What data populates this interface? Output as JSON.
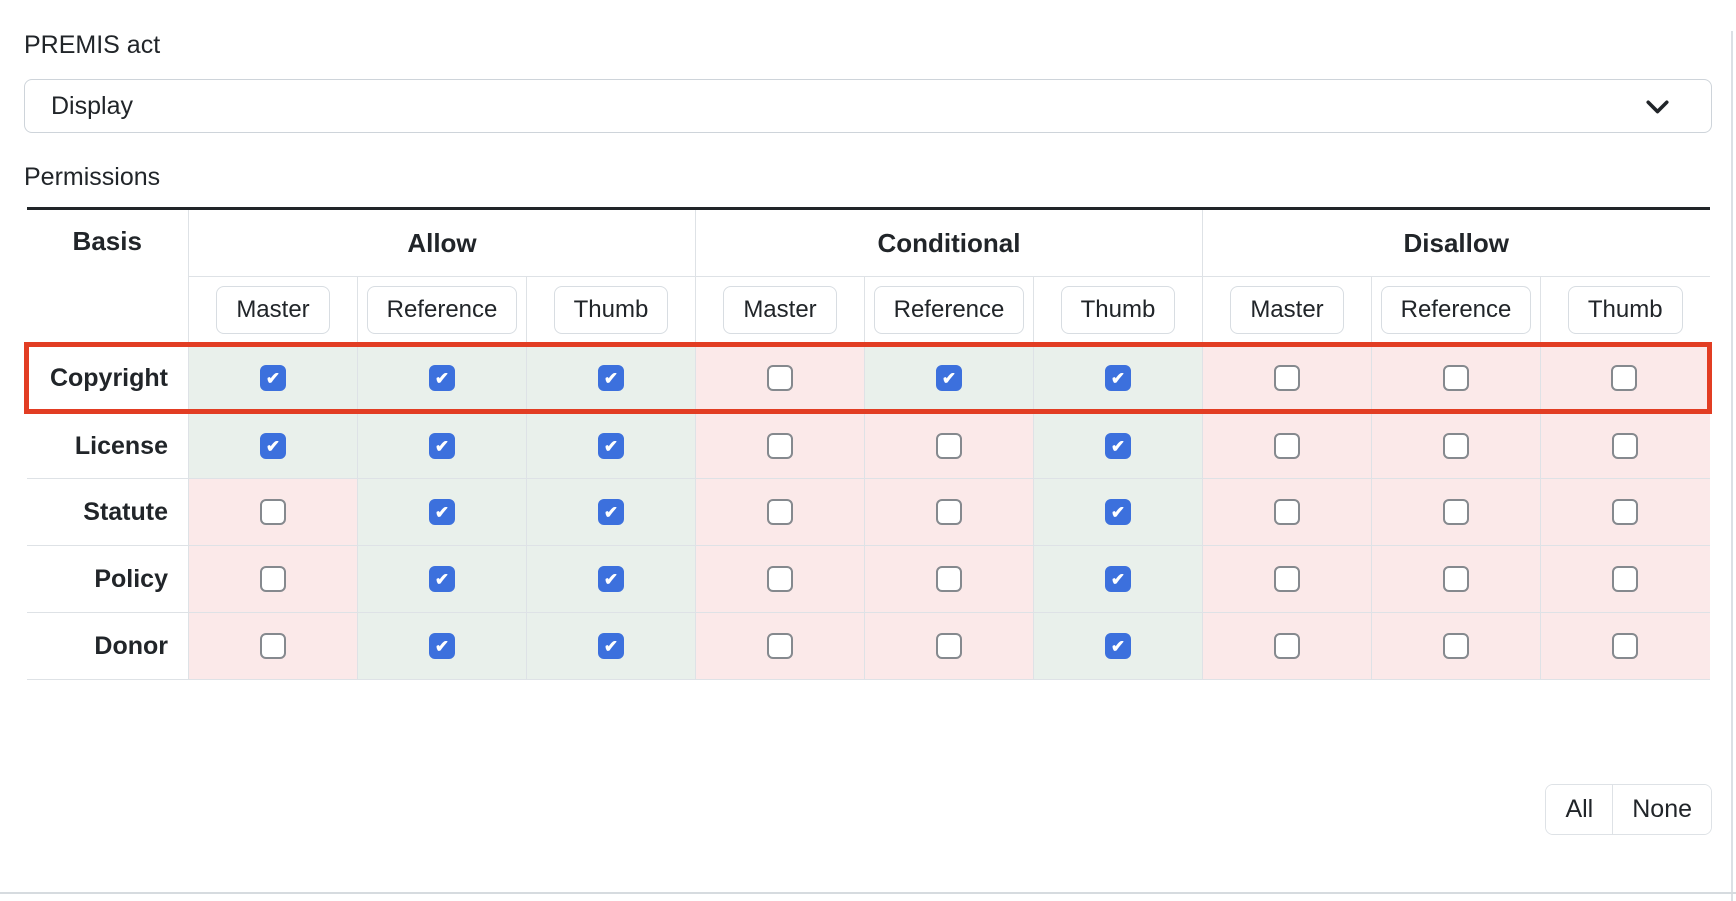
{
  "premis_act": {
    "label": "PREMIS act",
    "selected": "Display"
  },
  "permissions": {
    "label": "Permissions",
    "table": {
      "basis_header": "Basis",
      "groups": [
        "Allow",
        "Conditional",
        "Disallow"
      ],
      "sub_columns": [
        "Master",
        "Reference",
        "Thumb"
      ],
      "rows": [
        {
          "basis": "Copyright",
          "highlighted": true,
          "values": [
            true,
            true,
            true,
            false,
            true,
            true,
            false,
            false,
            false
          ]
        },
        {
          "basis": "License",
          "highlighted": false,
          "values": [
            true,
            true,
            true,
            false,
            false,
            true,
            false,
            false,
            false
          ]
        },
        {
          "basis": "Statute",
          "highlighted": false,
          "values": [
            false,
            true,
            true,
            false,
            false,
            true,
            false,
            false,
            false
          ]
        },
        {
          "basis": "Policy",
          "highlighted": false,
          "values": [
            false,
            true,
            true,
            false,
            false,
            true,
            false,
            false,
            false
          ]
        },
        {
          "basis": "Donor",
          "highlighted": false,
          "values": [
            false,
            true,
            true,
            false,
            false,
            true,
            false,
            false,
            false
          ]
        }
      ]
    },
    "actions": {
      "all_label": "All",
      "none_label": "None"
    }
  },
  "icons": {
    "select_indicator": "chevron-down-icon"
  },
  "colors": {
    "checkbox_checked": "#3c70dd",
    "allowed_cell_bg": "#e9f0eb",
    "denied_cell_bg": "#fbe9e9",
    "highlight_border": "#e23d23",
    "table_top_border": "#212529",
    "cell_border": "#dee2e6",
    "text": "#212529"
  }
}
